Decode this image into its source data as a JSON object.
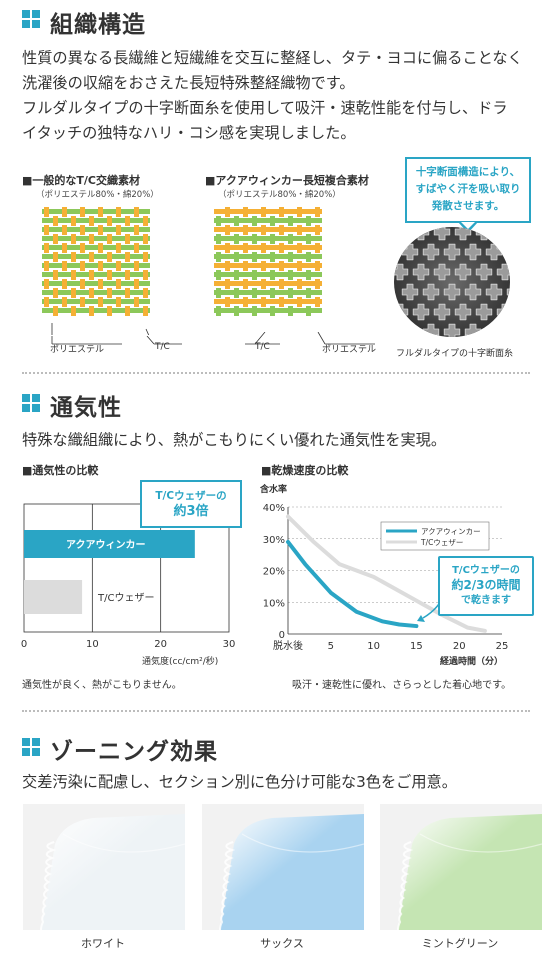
{
  "sections": {
    "structure": {
      "title": "組織構造",
      "lines": [
        "性質の異なる長繊維と短繊維を交互に整経し、タテ・ヨコに偏ることなく",
        "洗濯後の収縮をおさえた長短特殊整経織物です。",
        "フルダルタイプの十字断面糸を使用して吸汗・速乾性能を付与し、ドラ",
        "イタッチの独特なハリ・コシ感を実現しました。"
      ],
      "general": {
        "heading": "■一般的なT/C交織素材",
        "note": "（ポリエステル80%・綿20%）",
        "label_poly": "ポリエステル",
        "label_tc": "T/C"
      },
      "aqua": {
        "heading": "■アクアウィンカー長短複合素材",
        "note": "（ポリエステル80%・綿20%）",
        "label_tc": "T/C",
        "label_poly": "ポリエステル"
      },
      "callout": [
        "十字断面構造により、",
        "すばやく汗を吸い取り",
        "発散させます。"
      ],
      "photo_caption": "フルダルタイプの十字断面糸"
    },
    "breathability": {
      "title": "通気性",
      "desc": "特殊な織組織により、熱がこもりにくい優れた通気性を実現。",
      "heading": "■通気性の比較",
      "callout": [
        "T/Cウェザーの",
        "約3倍"
      ],
      "footnote": "通気性が良く、熱がこもりません。"
    },
    "drying": {
      "heading": "■乾燥速度の比較",
      "callout": [
        "T/Cウェザーの",
        "約2/3の時間",
        "で乾きます"
      ],
      "footnote": "吸汗・速乾性に優れ、さらっとした着心地です。"
    },
    "zoning": {
      "title": "ゾーニング効果",
      "desc": "交差汚染に配慮し、セクション別に色分け可能な3色をご用意。",
      "colors": [
        {
          "name": "ホワイト",
          "hex": "#eef3f6"
        },
        {
          "name": "サックス",
          "hex": "#a9d3f0"
        },
        {
          "name": "ミントグリーン",
          "hex": "#c5e5b3"
        }
      ]
    }
  },
  "colors": {
    "accent": "#2aa5c5",
    "weave_green": "#8cc85a",
    "weave_orange": "#f5b035"
  },
  "chart_data": [
    {
      "type": "bar",
      "orientation": "horizontal",
      "title": "■通気性の比較",
      "categories": [
        "アクアウィンカー",
        "T/Cウェザー"
      ],
      "values": [
        25,
        8.5
      ],
      "colors": [
        "#2aa5c5",
        "#dcdcdc"
      ],
      "xlabel": "通気度(cc/cm²/秒)",
      "xlim": [
        0,
        30
      ],
      "xticks": [
        "0",
        "10",
        "20",
        "30"
      ],
      "grid": "vertical"
    },
    {
      "type": "line",
      "title": "■乾燥速度の比較",
      "ylabel": "含水率",
      "xlabel": "経過時間（分）",
      "xlim": [
        0,
        25
      ],
      "ylim": [
        0,
        40
      ],
      "xticks": [
        "脱水後",
        "5",
        "10",
        "15",
        "20",
        "25"
      ],
      "yticks": [
        "0",
        "10%",
        "20%",
        "30%",
        "40%"
      ],
      "legend_position": "upper-right",
      "series": [
        {
          "name": "アクアウィンカー",
          "color": "#2aa5c5",
          "x": [
            0,
            2,
            5,
            8,
            11,
            13,
            15
          ],
          "y": [
            29,
            22,
            13,
            7,
            4,
            3,
            2.5
          ]
        },
        {
          "name": "T/Cウェザー",
          "color": "#dcdcdc",
          "x": [
            0,
            3,
            6,
            10,
            14,
            18,
            21,
            23
          ],
          "y": [
            37,
            29,
            22,
            18,
            12,
            6,
            2,
            1
          ]
        }
      ]
    }
  ]
}
